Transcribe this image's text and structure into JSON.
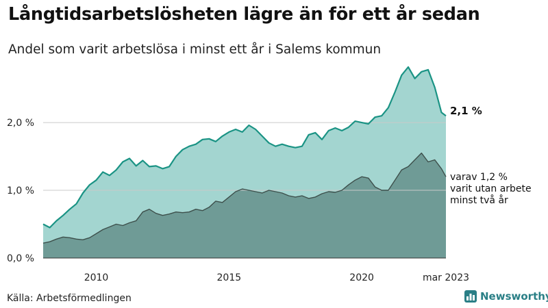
{
  "title": "Långtidsarbetslösheten lägre än för ett år sedan",
  "subtitle": "Andel som varit arbetslösa i minst ett år i Salems kommun",
  "source": "Källa: Arbetsförmedlingen",
  "brand": "Newsworthy",
  "colors": {
    "total_line": "#1a9384",
    "total_area": "#a3d5d0",
    "sub_line": "#3d4f4b",
    "sub_area": "#6f9b96",
    "brand": "#2a7f86"
  },
  "chart_data": {
    "type": "area",
    "x_ticks": [
      "2010",
      "2015",
      "2020",
      "mar 2023"
    ],
    "y_ticks": [
      "0,0 %",
      "1,0 %",
      "2,0 %"
    ],
    "ylim": [
      0,
      2.9
    ],
    "xlim": [
      2008.0,
      2023.17
    ],
    "grid": true,
    "series": [
      {
        "key": "total",
        "end_label": "2,1 %",
        "points": [
          [
            2008.0,
            0.5
          ],
          [
            2008.25,
            0.45
          ],
          [
            2008.5,
            0.55
          ],
          [
            2008.75,
            0.63
          ],
          [
            2009.0,
            0.72
          ],
          [
            2009.25,
            0.8
          ],
          [
            2009.5,
            0.96
          ],
          [
            2009.75,
            1.08
          ],
          [
            2010.0,
            1.15
          ],
          [
            2010.25,
            1.27
          ],
          [
            2010.5,
            1.22
          ],
          [
            2010.75,
            1.3
          ],
          [
            2011.0,
            1.42
          ],
          [
            2011.25,
            1.47
          ],
          [
            2011.5,
            1.36
          ],
          [
            2011.75,
            1.44
          ],
          [
            2012.0,
            1.35
          ],
          [
            2012.25,
            1.36
          ],
          [
            2012.5,
            1.32
          ],
          [
            2012.75,
            1.35
          ],
          [
            2013.0,
            1.5
          ],
          [
            2013.25,
            1.6
          ],
          [
            2013.5,
            1.65
          ],
          [
            2013.75,
            1.68
          ],
          [
            2014.0,
            1.75
          ],
          [
            2014.25,
            1.76
          ],
          [
            2014.5,
            1.72
          ],
          [
            2014.75,
            1.8
          ],
          [
            2015.0,
            1.86
          ],
          [
            2015.25,
            1.9
          ],
          [
            2015.5,
            1.86
          ],
          [
            2015.75,
            1.96
          ],
          [
            2016.0,
            1.9
          ],
          [
            2016.25,
            1.8
          ],
          [
            2016.5,
            1.7
          ],
          [
            2016.75,
            1.65
          ],
          [
            2017.0,
            1.68
          ],
          [
            2017.25,
            1.65
          ],
          [
            2017.5,
            1.63
          ],
          [
            2017.75,
            1.65
          ],
          [
            2018.0,
            1.82
          ],
          [
            2018.25,
            1.85
          ],
          [
            2018.5,
            1.75
          ],
          [
            2018.75,
            1.88
          ],
          [
            2019.0,
            1.92
          ],
          [
            2019.25,
            1.88
          ],
          [
            2019.5,
            1.93
          ],
          [
            2019.75,
            2.02
          ],
          [
            2020.0,
            2.0
          ],
          [
            2020.25,
            1.98
          ],
          [
            2020.5,
            2.08
          ],
          [
            2020.75,
            2.1
          ],
          [
            2021.0,
            2.22
          ],
          [
            2021.25,
            2.45
          ],
          [
            2021.5,
            2.7
          ],
          [
            2021.75,
            2.82
          ],
          [
            2022.0,
            2.65
          ],
          [
            2022.25,
            2.75
          ],
          [
            2022.5,
            2.78
          ],
          [
            2022.75,
            2.52
          ],
          [
            2023.0,
            2.15
          ],
          [
            2023.17,
            2.1
          ]
        ]
      },
      {
        "key": "long",
        "end_label": [
          "varav 1,2 %",
          "varit utan arbete",
          "minst två år"
        ],
        "points": [
          [
            2008.0,
            0.22
          ],
          [
            2008.25,
            0.24
          ],
          [
            2008.5,
            0.28
          ],
          [
            2008.75,
            0.31
          ],
          [
            2009.0,
            0.3
          ],
          [
            2009.25,
            0.28
          ],
          [
            2009.5,
            0.27
          ],
          [
            2009.75,
            0.3
          ],
          [
            2010.0,
            0.36
          ],
          [
            2010.25,
            0.42
          ],
          [
            2010.5,
            0.46
          ],
          [
            2010.75,
            0.5
          ],
          [
            2011.0,
            0.48
          ],
          [
            2011.25,
            0.52
          ],
          [
            2011.5,
            0.55
          ],
          [
            2011.75,
            0.68
          ],
          [
            2012.0,
            0.72
          ],
          [
            2012.25,
            0.66
          ],
          [
            2012.5,
            0.63
          ],
          [
            2012.75,
            0.65
          ],
          [
            2013.0,
            0.68
          ],
          [
            2013.25,
            0.67
          ],
          [
            2013.5,
            0.68
          ],
          [
            2013.75,
            0.72
          ],
          [
            2014.0,
            0.7
          ],
          [
            2014.25,
            0.75
          ],
          [
            2014.5,
            0.84
          ],
          [
            2014.75,
            0.82
          ],
          [
            2015.0,
            0.9
          ],
          [
            2015.25,
            0.98
          ],
          [
            2015.5,
            1.02
          ],
          [
            2015.75,
            1.0
          ],
          [
            2016.0,
            0.98
          ],
          [
            2016.25,
            0.96
          ],
          [
            2016.5,
            1.0
          ],
          [
            2016.75,
            0.98
          ],
          [
            2017.0,
            0.96
          ],
          [
            2017.25,
            0.92
          ],
          [
            2017.5,
            0.9
          ],
          [
            2017.75,
            0.92
          ],
          [
            2018.0,
            0.88
          ],
          [
            2018.25,
            0.9
          ],
          [
            2018.5,
            0.95
          ],
          [
            2018.75,
            0.98
          ],
          [
            2019.0,
            0.97
          ],
          [
            2019.25,
            1.0
          ],
          [
            2019.5,
            1.08
          ],
          [
            2019.75,
            1.15
          ],
          [
            2020.0,
            1.2
          ],
          [
            2020.25,
            1.18
          ],
          [
            2020.5,
            1.05
          ],
          [
            2020.75,
            1.0
          ],
          [
            2021.0,
            1.0
          ],
          [
            2021.25,
            1.15
          ],
          [
            2021.5,
            1.3
          ],
          [
            2021.75,
            1.35
          ],
          [
            2022.0,
            1.45
          ],
          [
            2022.25,
            1.55
          ],
          [
            2022.5,
            1.42
          ],
          [
            2022.75,
            1.45
          ],
          [
            2023.0,
            1.32
          ],
          [
            2023.17,
            1.2
          ]
        ]
      }
    ]
  }
}
